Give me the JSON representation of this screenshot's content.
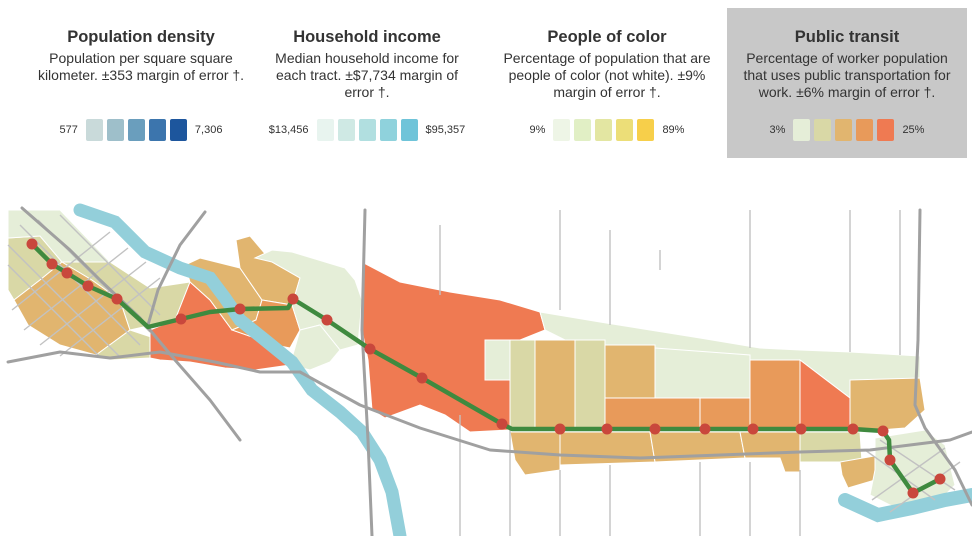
{
  "legends": [
    {
      "title": "Population density",
      "description": "Population per square square kilometer. ±353 margin of error †.",
      "min_label": "577",
      "max_label": "7,306",
      "colors": [
        "#c9dada",
        "#9ebfca",
        "#6a9ebd",
        "#3c75ad",
        "#1d569d"
      ],
      "active": false
    },
    {
      "title": "Household income",
      "description": "Median household income for each tract. ±$7,734 margin of error †.",
      "min_label": "$13,456",
      "max_label": "$95,357",
      "colors": [
        "#e8f4ef",
        "#cfe9e4",
        "#b1dfe0",
        "#8fd2dc",
        "#6fc4d9"
      ],
      "active": false
    },
    {
      "title": "People of color",
      "description": "Percentage of population that are people of color (not white). ±9% margin of error †.",
      "min_label": "9%",
      "max_label": "89%",
      "colors": [
        "#eef5e6",
        "#e1efc5",
        "#e3e6a2",
        "#ecde78",
        "#f7cf4a"
      ],
      "active": false
    },
    {
      "title": "Public transit",
      "description": "Percentage of worker population that uses public transportation for work. ±6% margin of error †.",
      "min_label": "3%",
      "max_label": "25%",
      "colors": [
        "#e5eed8",
        "#d9d8a6",
        "#e1b56f",
        "#e89a5a",
        "#ef7a52"
      ],
      "active": true
    }
  ],
  "map": {
    "river_color": "#93cfda",
    "road_color": "#a0a0a0",
    "street_color": "#c2c2c2",
    "line_color": "#3f8a3f",
    "station_color": "#c9473c",
    "tract_colors": {
      "c1": "#e5eed8",
      "c2": "#d9d8a6",
      "c3": "#e1b56f",
      "c4": "#e89a5a",
      "c5": "#ef7a52"
    }
  }
}
